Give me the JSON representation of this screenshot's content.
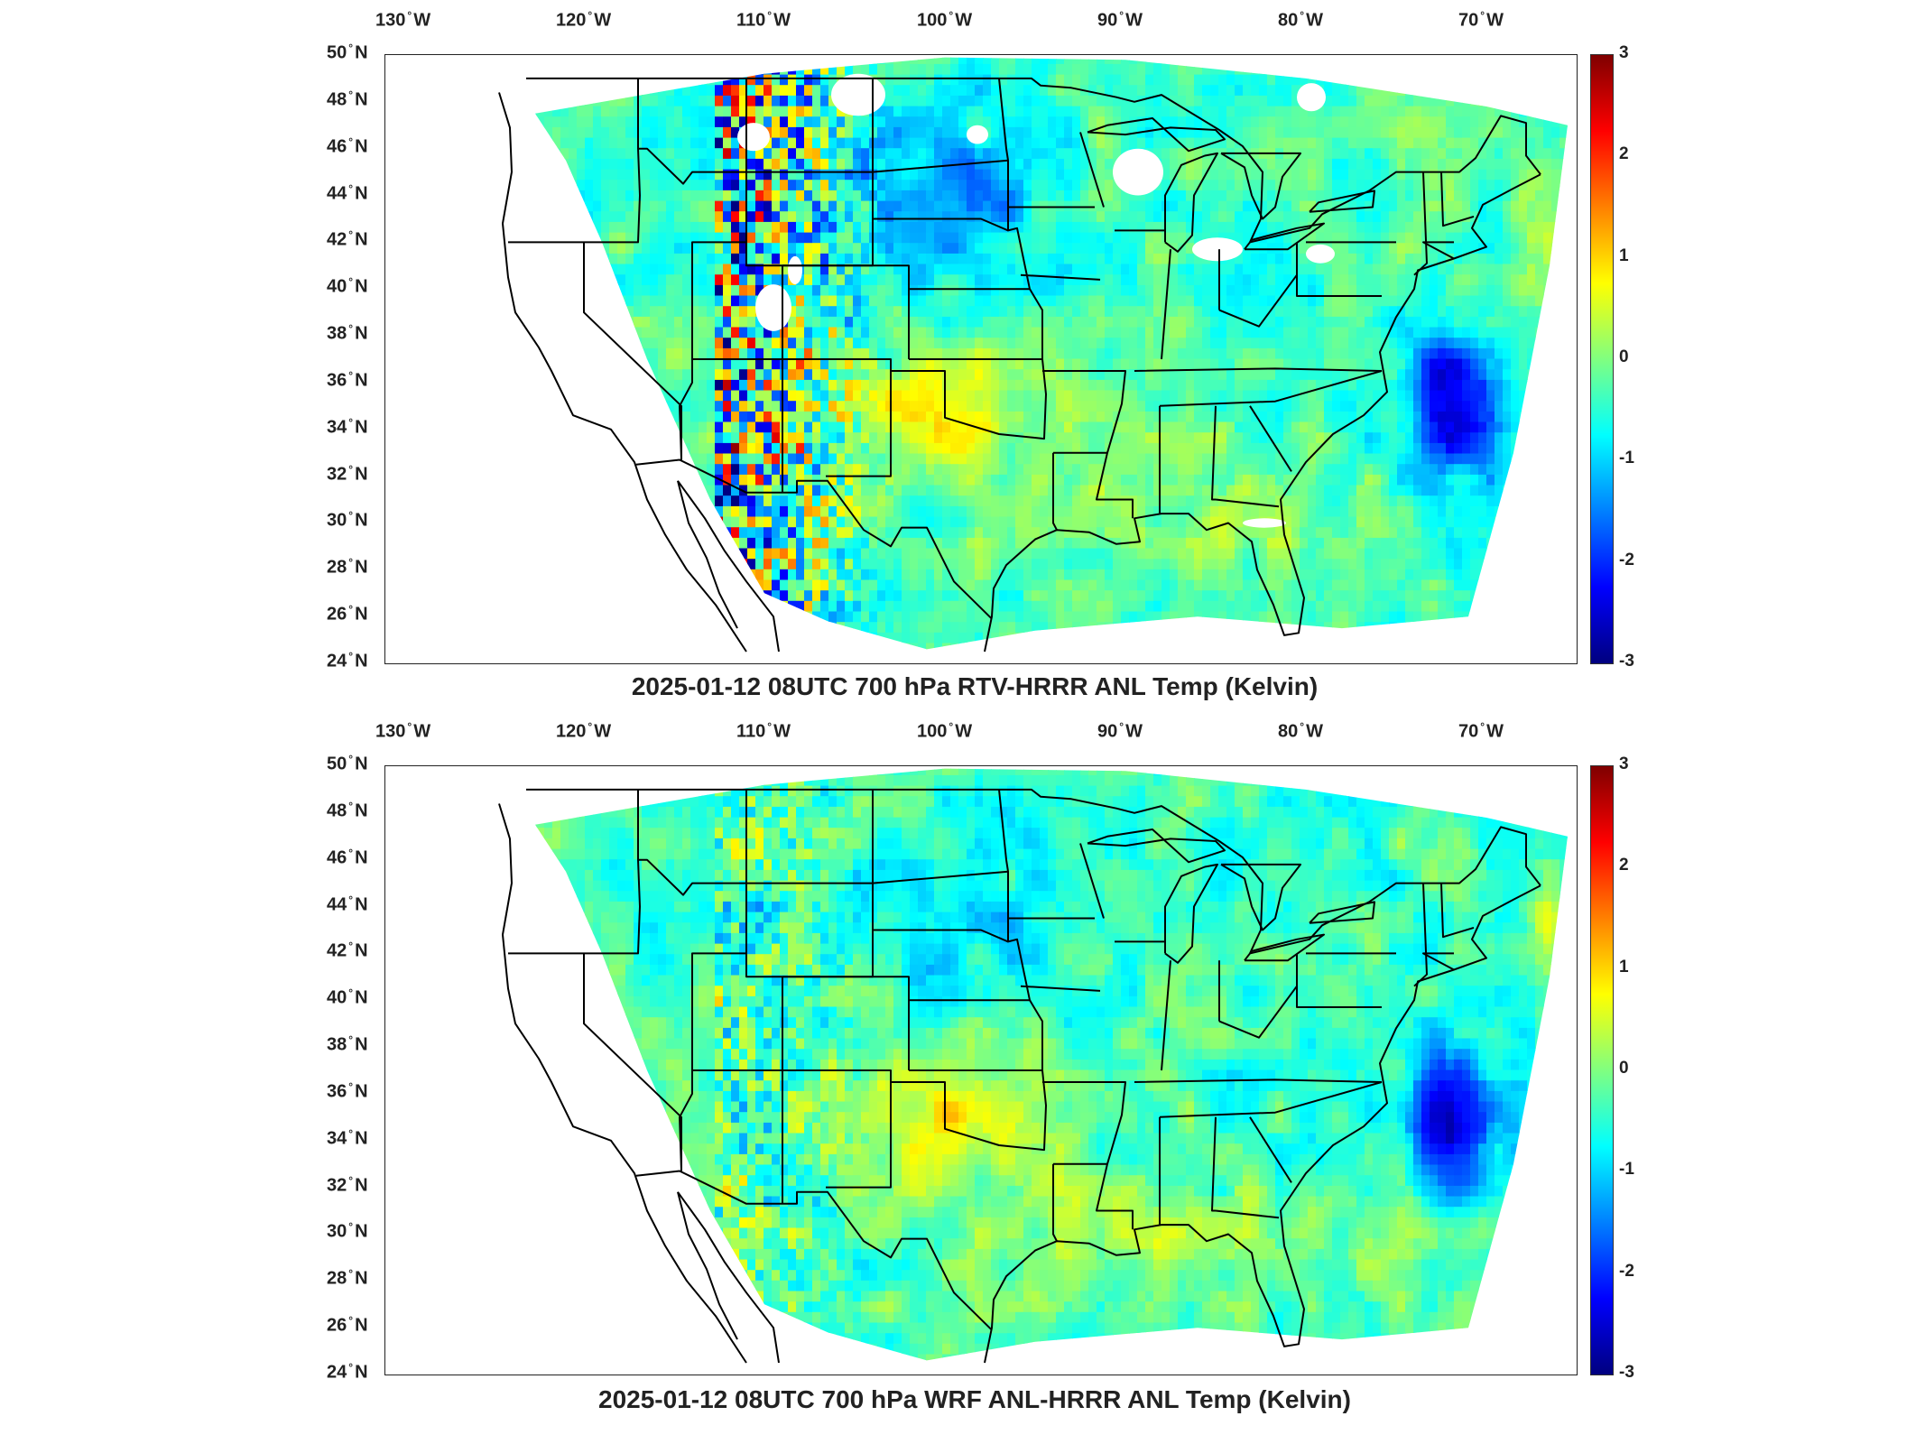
{
  "lon_ticks": [
    "130",
    "120",
    "110",
    "100",
    "90",
    "80",
    "70"
  ],
  "lon_suffix": "W",
  "lat_ticks": [
    "50",
    "48",
    "46",
    "44",
    "42",
    "40",
    "38",
    "36",
    "34",
    "32",
    "30",
    "28",
    "26",
    "24"
  ],
  "lat_suffix": "N",
  "colorbar": {
    "ticks": [
      "3",
      "2",
      "1",
      "0",
      "-1",
      "-2",
      "-3"
    ],
    "range": [
      -3,
      3
    ],
    "colormap": "jet",
    "colors": [
      "#00007f",
      "#0000ff",
      "#0080ff",
      "#00ffff",
      "#80ff80",
      "#ffff00",
      "#ff8000",
      "#ff0000",
      "#7f0000"
    ]
  },
  "panels": [
    {
      "title": "2025-01-12 08UTC 700 hPa RTV-HRRR ANL Temp (Kelvin)",
      "has_missing_regions": true
    },
    {
      "title": "2025-01-12 08UTC 700 hPa WRF ANL-HRRR ANL Temp (Kelvin)",
      "has_missing_regions": false
    }
  ],
  "map_extent": {
    "lon": [
      -131,
      -65
    ],
    "lat": [
      24,
      50
    ]
  }
}
